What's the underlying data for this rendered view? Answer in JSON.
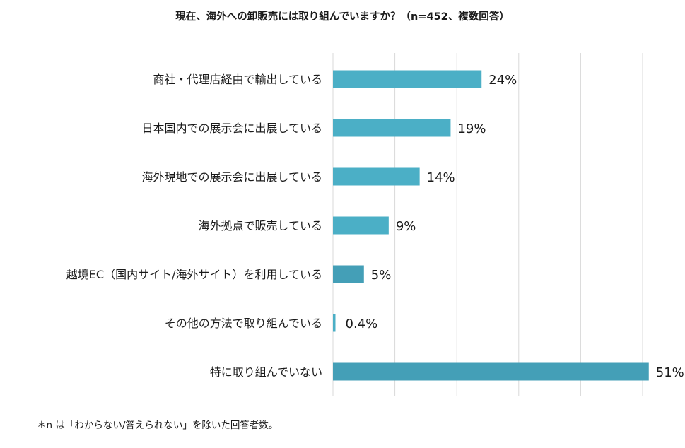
{
  "chart_data": {
    "type": "bar",
    "orientation": "horizontal",
    "title": "現在、海外への卸販売には取り組んでいますか？（n=452、複数回答）",
    "categories": [
      "商社・代理店経由で輸出している",
      "日本国内での展示会に出展している",
      "海外現地での展示会に出展している",
      "海外拠点で販売している",
      "越境EC（国内サイト/海外サイト）を利用している",
      "その他の方法で取り組んでいる",
      "特に取り組んでいない"
    ],
    "values": [
      24,
      19,
      14,
      9,
      5,
      0.4,
      51
    ],
    "value_labels": [
      "24%",
      "19%",
      "14%",
      "9%",
      "5%",
      "0.4%",
      "51%"
    ],
    "xlim": [
      0,
      50
    ],
    "grid": true,
    "bar_colors": [
      "#4bafc6",
      "#4bafc6",
      "#4bafc6",
      "#4bafc6",
      "#449fb7",
      "#4bafc6",
      "#449fb7"
    ],
    "gridline_color": "#d9d9d9"
  },
  "footnote": "＊n は「わからない/答えられない」を除いた回答者数。"
}
